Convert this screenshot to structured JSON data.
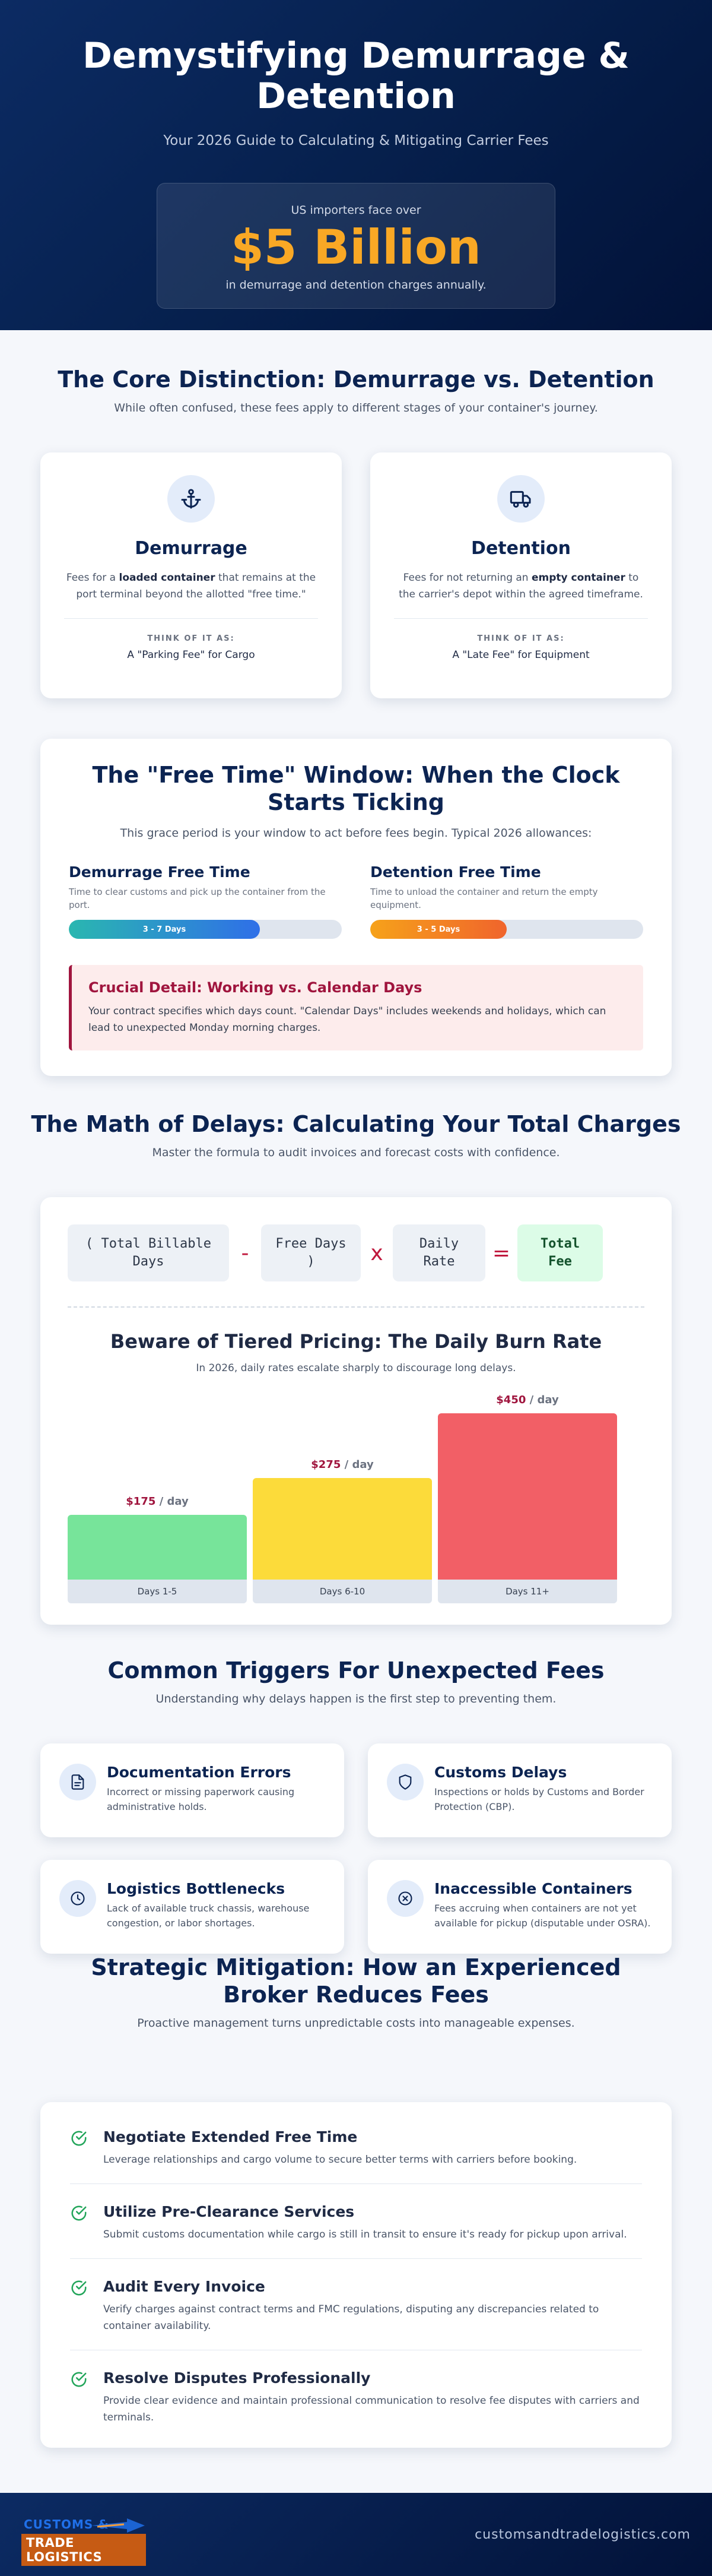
{
  "hero": {
    "title": "Demystifying Demurrage & Detention",
    "subtitle": "Your 2026 Guide to Calculating & Mitigating Carrier Fees",
    "stat_pre": "US importers face over",
    "stat_value": "$5 Billion",
    "stat_post": "in demurrage and detention charges annually."
  },
  "core": {
    "title": "The Core Distinction: Demurrage vs. Detention",
    "subtitle": "While often confused, these fees apply to different stages of your container's journey.",
    "cards": [
      {
        "icon": "anchor-icon",
        "title": "Demurrage",
        "desc_pre": "Fees for a ",
        "desc_bold": "loaded container",
        "desc_post": " that remains at the port terminal beyond the allotted \"free time.\"",
        "think_label": "THINK OF IT AS:",
        "think_value": "A \"Parking Fee\" for Cargo"
      },
      {
        "icon": "truck-icon",
        "title": "Detention",
        "desc_pre": "Fees for not returning an ",
        "desc_bold": "empty container",
        "desc_post": " to the carrier's depot within the agreed timeframe.",
        "think_label": "THINK OF IT AS:",
        "think_value": "A \"Late Fee\" for Equipment"
      }
    ]
  },
  "free_time": {
    "title": "The \"Free Time\" Window: When the Clock Starts Ticking",
    "subtitle": "This grace period is your window to act before fees begin. Typical 2026 allowances:",
    "columns": [
      {
        "title": "Demurrage Free Time",
        "desc": "Time to clear customs and pick up the container from the port.",
        "bar_label": "3 - 7 Days",
        "fill_fraction": 0.7,
        "color": "#2f6fe8"
      },
      {
        "title": "Detention Free Time",
        "desc": "Time to unload the container and return the empty equipment.",
        "bar_label": "3 - 5 Days",
        "fill_fraction": 0.5,
        "color": "#f0642c"
      }
    ],
    "callout_title": "Crucial Detail: Working vs. Calendar Days",
    "callout_text": "Your contract specifies which days count. \"Calendar Days\" includes weekends and holidays, which can lead to unexpected Monday morning charges."
  },
  "math": {
    "title": "The Math of Delays: Calculating Your Total Charges",
    "subtitle": "Master the formula to audit invoices and forecast costs with confidence.",
    "formula": {
      "term1": "( Total Billable Days",
      "op1": "-",
      "term2": "Free Days )",
      "op2": "x",
      "term3": "Daily Rate",
      "op3": "=",
      "result": "Total Fee"
    },
    "tier_title": "Beware of Tiered Pricing: The Daily Burn Rate",
    "tier_subtitle": "In 2026, daily rates escalate sharply to discourage long delays.",
    "per_day": "/ day",
    "chart_data": {
      "type": "bar",
      "title": "",
      "categories": [
        "Days 1-5",
        "Days 6-10",
        "Days 11+"
      ],
      "values": [
        175,
        275,
        450
      ],
      "value_labels": [
        "$175",
        "$275",
        "$450"
      ],
      "colors": [
        "#77e49a",
        "#fcdb3a",
        "#f25f66"
      ],
      "ylim": [
        0,
        450
      ]
    }
  },
  "triggers": {
    "title": "Common Triggers For Unexpected Fees",
    "subtitle": "Understanding why delays happen is the first step to preventing them.",
    "items": [
      {
        "icon": "document-icon",
        "title": "Documentation Errors",
        "desc": "Incorrect or missing paperwork causing administrative holds."
      },
      {
        "icon": "shield-icon",
        "title": "Customs Delays",
        "desc": "Inspections or holds by Customs and Border Protection (CBP)."
      },
      {
        "icon": "clock-icon",
        "title": "Logistics Bottlenecks",
        "desc": "Lack of available truck chassis, warehouse congestion, or labor shortages."
      },
      {
        "icon": "x-circle-icon",
        "title": "Inaccessible Containers",
        "desc": "Fees accruing when containers are not yet available for pickup (disputable under OSRA)."
      }
    ]
  },
  "mitigation": {
    "title": "Strategic Mitigation: How an Experienced Broker Reduces Fees",
    "subtitle": "Proactive management turns unpredictable costs into manageable expenses.",
    "items": [
      {
        "title": "Negotiate Extended Free Time",
        "desc": "Leverage relationships and cargo volume to secure better terms with carriers before booking."
      },
      {
        "title": "Utilize Pre-Clearance Services",
        "desc": "Submit customs documentation while cargo is still in transit to ensure it's ready for pickup upon arrival."
      },
      {
        "title": "Audit Every Invoice",
        "desc": "Verify charges against contract terms and FMC regulations, disputing any discrepancies related to container availability."
      },
      {
        "title": "Resolve Disputes Professionally",
        "desc": "Provide clear evidence and maintain professional communication to resolve fee disputes with carriers and terminals."
      }
    ]
  },
  "footer": {
    "logo_line1": "CUSTOMS &",
    "logo_line2": "TRADE LOGISTICS",
    "site": "customsandtradelogistics.com"
  }
}
